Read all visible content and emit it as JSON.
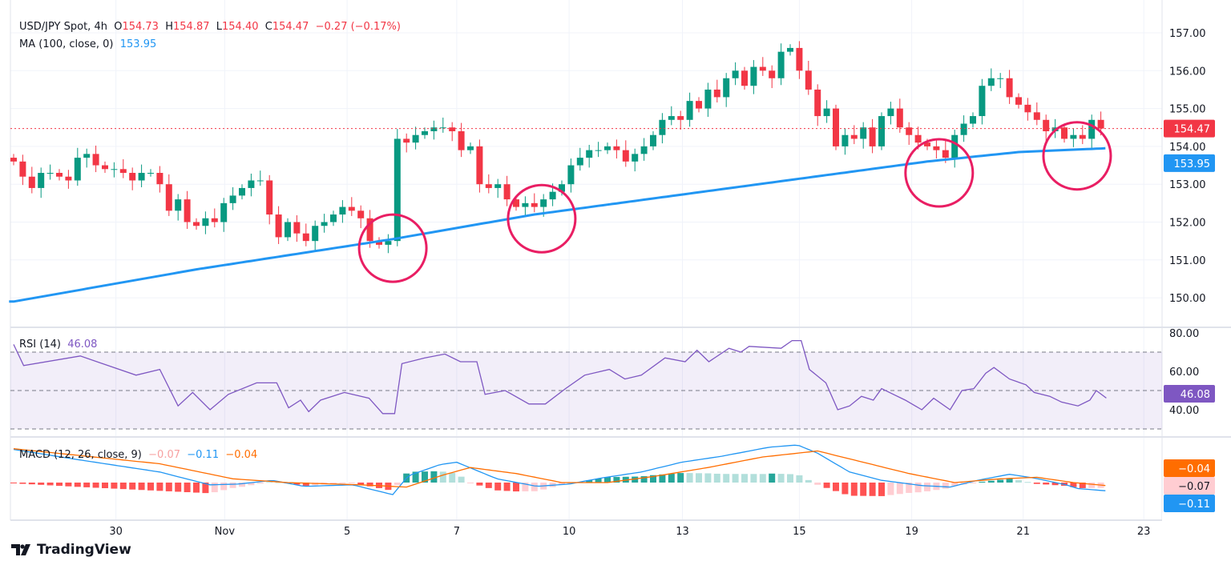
{
  "header": {
    "symbol": "USD/JPY Spot, 4h",
    "o_label": "O",
    "o": "154.73",
    "h_label": "H",
    "h": "154.87",
    "l_label": "L",
    "l": "154.40",
    "c_label": "C",
    "c": "154.47",
    "change": "−0.27 (−0.17%)"
  },
  "ma_legend": {
    "label": "MA (100, close, 0)",
    "value": "153.95"
  },
  "rsi_legend": {
    "label": "RSI (14)",
    "value": "46.08"
  },
  "macd_legend": {
    "label": "MACD (12, 26, close, 9)",
    "hist": "−0.07",
    "macd": "−0.11",
    "signal": "−0.04"
  },
  "brand": "TradingView",
  "colors": {
    "up": "#089981",
    "down": "#f23645",
    "ma": "#2196f3",
    "rsi": "#7e57c2",
    "macd": "#2196f3",
    "signal": "#ff6d00",
    "circle": "#e91e63"
  },
  "chart_data": [
    {
      "type": "candlestick",
      "title": "USD/JPY Spot, 4h",
      "ylim": [
        149.6,
        157.4
      ],
      "yticks": [
        "157.00",
        "156.00",
        "155.00",
        "154.00",
        "153.00",
        "152.00",
        "151.00",
        "150.00"
      ],
      "xticks": [
        {
          "label": "30",
          "i": 11.2
        },
        {
          "label": "Nov",
          "i": 23.1
        },
        {
          "label": "5",
          "i": 36.5
        },
        {
          "label": "7",
          "i": 48.5
        },
        {
          "label": "10",
          "i": 60.8
        },
        {
          "label": "13",
          "i": 73.2
        },
        {
          "label": "15",
          "i": 86
        },
        {
          "label": "19",
          "i": 98.3
        },
        {
          "label": "21",
          "i": 110.5
        },
        {
          "label": "23",
          "i": 123.7
        }
      ],
      "closes": [
        153.6,
        153.2,
        152.9,
        153.3,
        153.3,
        153.2,
        153.1,
        153.7,
        153.8,
        153.5,
        153.4,
        153.4,
        153.3,
        153.1,
        153.3,
        153.3,
        153.0,
        152.3,
        152.6,
        152.0,
        151.9,
        152.1,
        152.0,
        152.5,
        152.7,
        152.9,
        153.1,
        153.1,
        152.2,
        151.6,
        152.0,
        151.7,
        151.5,
        151.9,
        152.0,
        152.2,
        152.4,
        152.3,
        152.1,
        151.5,
        151.4,
        151.5,
        154.2,
        154.1,
        154.3,
        154.4,
        154.5,
        154.5,
        154.4,
        153.9,
        154.0,
        153.0,
        152.9,
        153.0,
        152.6,
        152.4,
        152.5,
        152.4,
        152.6,
        152.8,
        153.0,
        153.5,
        153.7,
        153.9,
        153.9,
        154.0,
        153.9,
        153.6,
        153.8,
        154.0,
        154.3,
        154.7,
        154.8,
        154.7,
        155.2,
        155.0,
        155.5,
        155.3,
        155.8,
        156.0,
        155.6,
        156.1,
        156.0,
        155.8,
        156.5,
        156.6,
        156.0,
        155.5,
        154.8,
        155.0,
        154.0,
        154.3,
        154.2,
        154.5,
        154.0,
        154.8,
        155.0,
        154.5,
        154.3,
        154.1,
        154.0,
        153.9,
        153.7,
        154.3,
        154.6,
        154.8,
        155.6,
        155.8,
        155.8,
        155.3,
        155.1,
        154.9,
        154.7,
        154.4,
        154.5,
        154.2,
        154.3,
        154.2,
        154.7,
        154.47
      ],
      "first_open": 153.7,
      "last_price": "154.47",
      "ma_value": "153.95",
      "ma": [
        [
          0,
          149.9
        ],
        [
          20,
          150.75
        ],
        [
          41.5,
          151.55
        ],
        [
          57,
          152.2
        ],
        [
          80,
          152.95
        ],
        [
          100,
          153.6
        ],
        [
          110,
          153.85
        ],
        [
          119.6,
          153.95
        ]
      ],
      "annotations": [
        {
          "type": "circle",
          "i": 41.5,
          "price": 151.31
        },
        {
          "type": "circle",
          "i": 57.8,
          "price": 152.09
        },
        {
          "type": "circle",
          "i": 101.3,
          "price": 153.3
        },
        {
          "type": "circle",
          "i": 116.4,
          "price": 153.75
        }
      ]
    },
    {
      "type": "line",
      "title": "RSI (14)",
      "ylim": [
        25,
        83
      ],
      "yticks": [
        "80.00",
        "60.00",
        "40.00"
      ],
      "levels": [
        70,
        50,
        30
      ],
      "last": "46.08",
      "values": [
        [
          0,
          74
        ],
        [
          1.1,
          63
        ],
        [
          7.3,
          68
        ],
        [
          13.4,
          58
        ],
        [
          16,
          61
        ],
        [
          18,
          42
        ],
        [
          19.6,
          49
        ],
        [
          21.5,
          40
        ],
        [
          23.5,
          48
        ],
        [
          26.6,
          54
        ],
        [
          28.8,
          54
        ],
        [
          30.1,
          41
        ],
        [
          31.4,
          45
        ],
        [
          32.3,
          39
        ],
        [
          33.6,
          45
        ],
        [
          36.2,
          49
        ],
        [
          38.9,
          46
        ],
        [
          40.4,
          38
        ],
        [
          41.7,
          38
        ],
        [
          42.5,
          64
        ],
        [
          45,
          67
        ],
        [
          47.2,
          69
        ],
        [
          48.9,
          65
        ],
        [
          50.7,
          65
        ],
        [
          51.6,
          48
        ],
        [
          53.8,
          50
        ],
        [
          56.4,
          43
        ],
        [
          58.2,
          43
        ],
        [
          60.4,
          51
        ],
        [
          62.5,
          58
        ],
        [
          65.2,
          61
        ],
        [
          66.9,
          56
        ],
        [
          68.7,
          58
        ],
        [
          71.3,
          67
        ],
        [
          73.5,
          65
        ],
        [
          74.8,
          71
        ],
        [
          76.1,
          65
        ],
        [
          78.3,
          72
        ],
        [
          79.6,
          70
        ],
        [
          80.5,
          73
        ],
        [
          84,
          72
        ],
        [
          85.2,
          76
        ],
        [
          86.2,
          76
        ],
        [
          87.1,
          61
        ],
        [
          88.9,
          54
        ],
        [
          90.2,
          40
        ],
        [
          91.5,
          42
        ],
        [
          92.8,
          47
        ],
        [
          94.1,
          45
        ],
        [
          95,
          51
        ],
        [
          96.3,
          48
        ],
        [
          97.6,
          45
        ],
        [
          99.4,
          40
        ],
        [
          100.7,
          46
        ],
        [
          102.5,
          40
        ],
        [
          103.8,
          50
        ],
        [
          105.1,
          51
        ],
        [
          106.4,
          59
        ],
        [
          107.3,
          62
        ],
        [
          109,
          56
        ],
        [
          110.8,
          53
        ],
        [
          111.7,
          49
        ],
        [
          113.4,
          47
        ],
        [
          114.7,
          44
        ],
        [
          116.5,
          42
        ],
        [
          117.8,
          45
        ],
        [
          118.5,
          50
        ],
        [
          119.6,
          46.08
        ]
      ]
    },
    {
      "type": "macd",
      "title": "MACD (12, 26, close, 9)",
      "macd": [
        [
          0,
          0.44
        ],
        [
          7.3,
          0.3
        ],
        [
          16,
          0.14
        ],
        [
          21.5,
          -0.03
        ],
        [
          24.6,
          -0.02
        ],
        [
          28.3,
          0.03
        ],
        [
          31.8,
          -0.05
        ],
        [
          37.1,
          -0.03
        ],
        [
          41.5,
          -0.16
        ],
        [
          43.2,
          0.09
        ],
        [
          46.7,
          0.24
        ],
        [
          48.5,
          0.27
        ],
        [
          52.9,
          0.05
        ],
        [
          57.3,
          -0.05
        ],
        [
          60.8,
          -0.02
        ],
        [
          64.3,
          0.06
        ],
        [
          68.7,
          0.14
        ],
        [
          73.1,
          0.27
        ],
        [
          77.5,
          0.35
        ],
        [
          82.7,
          0.47
        ],
        [
          85.8,
          0.5
        ],
        [
          88,
          0.39
        ],
        [
          91.5,
          0.14
        ],
        [
          95,
          0.03
        ],
        [
          99.4,
          -0.04
        ],
        [
          102.5,
          -0.06
        ],
        [
          105.5,
          0.03
        ],
        [
          109,
          0.11
        ],
        [
          111.7,
          0.06
        ],
        [
          115.2,
          -0.03
        ],
        [
          116.5,
          -0.08
        ],
        [
          119.6,
          -0.11
        ]
      ],
      "signal": [
        [
          0,
          0.45
        ],
        [
          16,
          0.25
        ],
        [
          24,
          0.05
        ],
        [
          30,
          0.0
        ],
        [
          38,
          -0.03
        ],
        [
          43,
          -0.06
        ],
        [
          47,
          0.1
        ],
        [
          50,
          0.2
        ],
        [
          55,
          0.12
        ],
        [
          60,
          0.0
        ],
        [
          65,
          0.0
        ],
        [
          70,
          0.08
        ],
        [
          76,
          0.2
        ],
        [
          82,
          0.34
        ],
        [
          88,
          0.42
        ],
        [
          92,
          0.3
        ],
        [
          98,
          0.12
        ],
        [
          103,
          0.0
        ],
        [
          108,
          0.05
        ],
        [
          112,
          0.07
        ],
        [
          116,
          0.0
        ],
        [
          119.6,
          -0.04
        ]
      ],
      "last": {
        "signal": "−0.04",
        "hist": "−0.07",
        "macd": "−0.11"
      }
    }
  ]
}
